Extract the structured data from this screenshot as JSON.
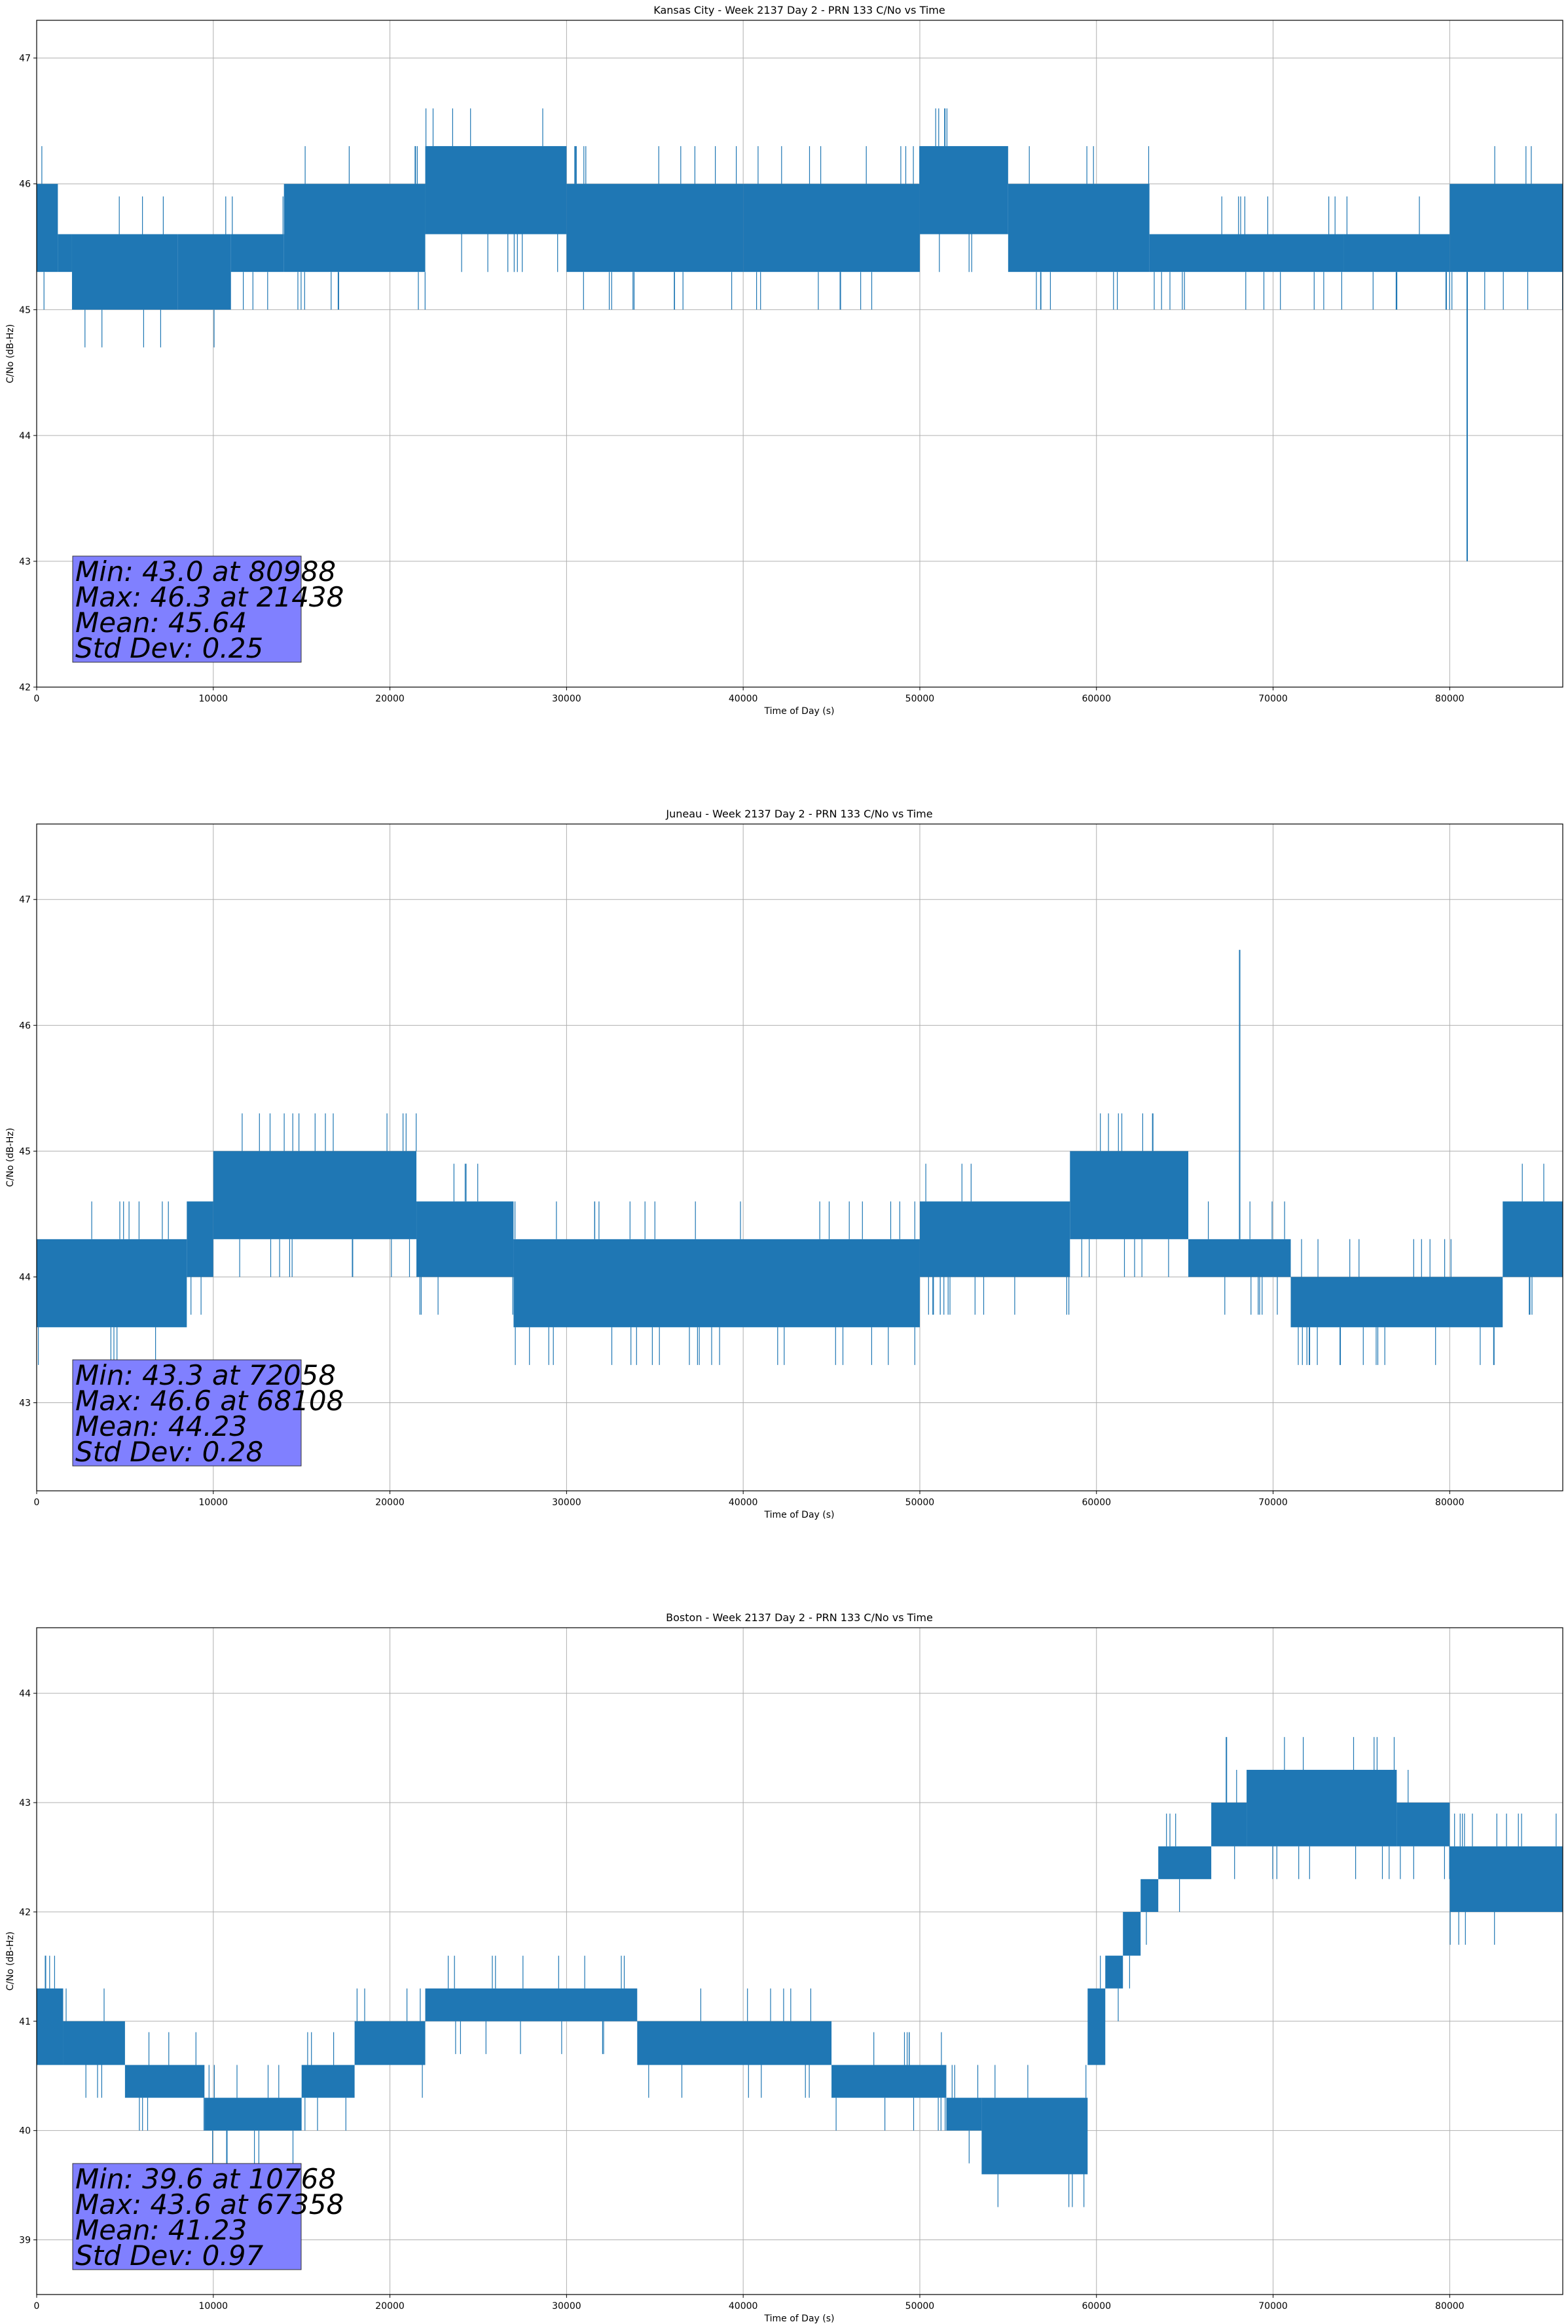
{
  "chart_data": [
    {
      "type": "line",
      "title": "Kansas City - Week 2137 Day 2 - PRN 133 C/No vs Time",
      "xlabel": "Time of Day (s)",
      "ylabel": "C/No (dB-Hz)",
      "xlim": [
        0,
        86400
      ],
      "ylim": [
        42,
        47.3
      ],
      "xticks": [
        0,
        10000,
        20000,
        30000,
        40000,
        50000,
        60000,
        70000,
        80000
      ],
      "yticks": [
        42,
        43,
        44,
        45,
        46,
        47
      ],
      "grid": true,
      "series_color": "#1f77b4",
      "series": [
        {
          "segments": [
            {
              "x": [
                0,
                1200
              ],
              "low": 45.3,
              "high": 46.0
            },
            {
              "x": [
                1200,
                2000
              ],
              "low": 45.3,
              "high": 45.6
            },
            {
              "x": [
                2000,
                8000
              ],
              "low": 45.0,
              "high": 45.6
            },
            {
              "x": [
                8000,
                11000
              ],
              "low": 45.0,
              "high": 45.6
            },
            {
              "x": [
                11000,
                14000
              ],
              "low": 45.3,
              "high": 45.6
            },
            {
              "x": [
                14000,
                22000
              ],
              "low": 45.3,
              "high": 46.0
            },
            {
              "x": [
                22000,
                30000
              ],
              "low": 45.6,
              "high": 46.3
            },
            {
              "x": [
                30000,
                40000
              ],
              "low": 45.3,
              "high": 46.0
            },
            {
              "x": [
                40000,
                50000
              ],
              "low": 45.3,
              "high": 46.0
            },
            {
              "x": [
                50000,
                55000
              ],
              "low": 45.6,
              "high": 46.3
            },
            {
              "x": [
                55000,
                63000
              ],
              "low": 45.3,
              "high": 46.0
            },
            {
              "x": [
                63000,
                74000
              ],
              "low": 45.3,
              "high": 45.6
            },
            {
              "x": [
                74000,
                80000
              ],
              "low": 45.3,
              "high": 45.6
            },
            {
              "x": [
                80000,
                86400
              ],
              "low": 45.3,
              "high": 46.0
            }
          ],
          "spikes": [
            {
              "x": 80988,
              "y": 43.0
            },
            {
              "x": 21438,
              "y": 46.3
            },
            {
              "x": 45500,
              "y": 45.0
            },
            {
              "x": 79800,
              "y": 45.0
            }
          ]
        }
      ],
      "stats": {
        "min": "Min: 43.0 at 80988",
        "max": "Max: 46.3 at 21438",
        "mean": "Mean: 45.64",
        "std": "Std Dev: 0.25"
      }
    },
    {
      "type": "line",
      "title": "Juneau - Week 2137 Day 2 - PRN 133 C/No vs Time",
      "xlabel": "Time of Day (s)",
      "ylabel": "C/No (dB-Hz)",
      "xlim": [
        0,
        86400
      ],
      "ylim": [
        42.3,
        47.6
      ],
      "xticks": [
        0,
        10000,
        20000,
        30000,
        40000,
        50000,
        60000,
        70000,
        80000
      ],
      "yticks": [
        43,
        44,
        45,
        46,
        47
      ],
      "grid": true,
      "series_color": "#1f77b4",
      "series": [
        {
          "segments": [
            {
              "x": [
                0,
                8500
              ],
              "low": 43.6,
              "high": 44.3
            },
            {
              "x": [
                8500,
                10000
              ],
              "low": 44.0,
              "high": 44.6
            },
            {
              "x": [
                10000,
                21500
              ],
              "low": 44.3,
              "high": 45.0
            },
            {
              "x": [
                21500,
                27000
              ],
              "low": 44.0,
              "high": 44.6
            },
            {
              "x": [
                27000,
                50000
              ],
              "low": 43.6,
              "high": 44.3
            },
            {
              "x": [
                50000,
                58500
              ],
              "low": 44.0,
              "high": 44.6
            },
            {
              "x": [
                58500,
                65200
              ],
              "low": 44.3,
              "high": 45.0
            },
            {
              "x": [
                65200,
                71000
              ],
              "low": 44.0,
              "high": 44.3
            },
            {
              "x": [
                71000,
                83000
              ],
              "low": 43.6,
              "high": 44.0
            },
            {
              "x": [
                83000,
                86400
              ],
              "low": 44.0,
              "high": 44.6
            }
          ],
          "spikes": [
            {
              "x": 68108,
              "y": 46.6
            },
            {
              "x": 72058,
              "y": 43.3
            },
            {
              "x": 73800,
              "y": 43.3
            },
            {
              "x": 82500,
              "y": 43.3
            }
          ]
        }
      ],
      "stats": {
        "min": "Min: 43.3 at 72058",
        "max": "Max: 46.6 at 68108",
        "mean": "Mean: 44.23",
        "std": "Std Dev: 0.28"
      }
    },
    {
      "type": "line",
      "title": "Boston - Week 2137 Day 2 - PRN 133 C/No vs Time",
      "xlabel": "Time of Day (s)",
      "ylabel": "C/No (dB-Hz)",
      "xlim": [
        0,
        86400
      ],
      "ylim": [
        38.5,
        44.6
      ],
      "xticks": [
        0,
        10000,
        20000,
        30000,
        40000,
        50000,
        60000,
        70000,
        80000
      ],
      "yticks": [
        39,
        40,
        41,
        42,
        43,
        44
      ],
      "grid": true,
      "series_color": "#1f77b4",
      "series": [
        {
          "segments": [
            {
              "x": [
                0,
                1500
              ],
              "low": 40.6,
              "high": 41.3
            },
            {
              "x": [
                1500,
                5000
              ],
              "low": 40.6,
              "high": 41.0
            },
            {
              "x": [
                5000,
                9500
              ],
              "low": 40.3,
              "high": 40.6
            },
            {
              "x": [
                9500,
                15000
              ],
              "low": 40.0,
              "high": 40.3
            },
            {
              "x": [
                15000,
                18000
              ],
              "low": 40.3,
              "high": 40.6
            },
            {
              "x": [
                18000,
                22000
              ],
              "low": 40.6,
              "high": 41.0
            },
            {
              "x": [
                22000,
                34000
              ],
              "low": 41.0,
              "high": 41.3
            },
            {
              "x": [
                34000,
                45000
              ],
              "low": 40.6,
              "high": 41.0
            },
            {
              "x": [
                45000,
                51500
              ],
              "low": 40.3,
              "high": 40.6
            },
            {
              "x": [
                51500,
                53500
              ],
              "low": 40.0,
              "high": 40.3
            },
            {
              "x": [
                53500,
                59500
              ],
              "low": 39.6,
              "high": 40.3
            },
            {
              "x": [
                59500,
                60500
              ],
              "low": 40.6,
              "high": 41.3
            },
            {
              "x": [
                60500,
                61500
              ],
              "low": 41.3,
              "high": 41.6
            },
            {
              "x": [
                61500,
                62500
              ],
              "low": 41.6,
              "high": 42.0
            },
            {
              "x": [
                62500,
                63500
              ],
              "low": 42.0,
              "high": 42.3
            },
            {
              "x": [
                63500,
                66500
              ],
              "low": 42.3,
              "high": 42.6
            },
            {
              "x": [
                66500,
                68500
              ],
              "low": 42.6,
              "high": 43.0
            },
            {
              "x": [
                68500,
                77000
              ],
              "low": 42.6,
              "high": 43.3
            },
            {
              "x": [
                77000,
                80000
              ],
              "low": 42.6,
              "high": 43.0
            },
            {
              "x": [
                80000,
                86400
              ],
              "low": 42.0,
              "high": 42.6
            }
          ],
          "spikes": [
            {
              "x": 67358,
              "y": 43.6
            },
            {
              "x": 10768,
              "y": 39.6
            },
            {
              "x": 500,
              "y": 41.6
            }
          ]
        }
      ],
      "stats": {
        "min": "Min: 39.6 at 10768",
        "max": "Max: 43.6 at 67358",
        "mean": "Mean: 41.23",
        "std": "Std Dev: 0.97"
      }
    }
  ]
}
